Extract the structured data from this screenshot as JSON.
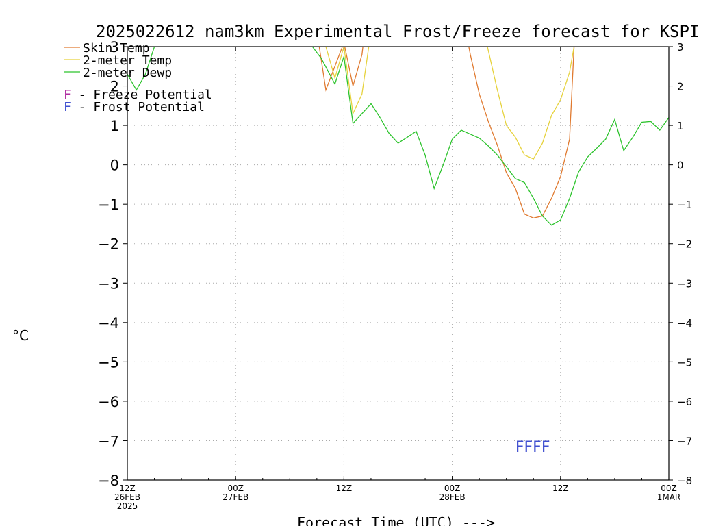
{
  "chart_data": {
    "type": "line",
    "title": "2025022612 nam3km Experimental Frost/Freeze forecast for KSPI",
    "xlabel": "Forecast Time (UTC) --->",
    "ylabel": "°C",
    "ylim": [
      -8,
      3
    ],
    "yticks": [
      -8,
      -7,
      -6,
      -5,
      -4,
      -3,
      -2,
      -1,
      0,
      1,
      2,
      3
    ],
    "yticklabels": [
      "−8",
      "−7",
      "−6",
      "−5",
      "−4",
      "−3",
      "−2",
      "−1",
      "0",
      "1",
      "2",
      "3"
    ],
    "xlim": [
      0,
      60
    ],
    "xticks": [
      {
        "hour": 0,
        "lines": [
          "12Z",
          "26FEB",
          "2025"
        ]
      },
      {
        "hour": 12,
        "lines": [
          "00Z",
          "27FEB"
        ]
      },
      {
        "hour": 24,
        "lines": [
          "12Z"
        ]
      },
      {
        "hour": 36,
        "lines": [
          "00Z",
          "28FEB"
        ]
      },
      {
        "hour": 48,
        "lines": [
          "12Z"
        ]
      },
      {
        "hour": 60,
        "lines": [
          "00Z",
          "1MAR"
        ]
      }
    ],
    "grid": true,
    "legend": [
      {
        "label": "Skin Temp",
        "color": "#e07a30"
      },
      {
        "label": "2-meter Temp",
        "color": "#e6d23c"
      },
      {
        "label": "2-meter Dewp",
        "color": "#2cc32c"
      }
    ],
    "legend_notes": [
      {
        "marker": "F",
        "label": " - Freeze Potential",
        "color": "#b02ca0"
      },
      {
        "marker": "F",
        "label": " - Frost Potential",
        "color": "#4050d0"
      }
    ],
    "series": [
      {
        "name": "Skin Temp",
        "color": "#e07a30",
        "points": [
          [
            21.0,
            3.4
          ],
          [
            22.0,
            1.9
          ],
          [
            23.0,
            2.5
          ],
          [
            24.0,
            3.1
          ],
          [
            25.0,
            2.0
          ],
          [
            26.0,
            2.8
          ],
          [
            26.5,
            3.8
          ],
          [
            37.5,
            3.4
          ],
          [
            38.0,
            2.8
          ],
          [
            39.0,
            1.8
          ],
          [
            40.0,
            1.1
          ],
          [
            41.0,
            0.5
          ],
          [
            42.0,
            -0.2
          ],
          [
            43.0,
            -0.6
          ],
          [
            44.0,
            -1.25
          ],
          [
            45.0,
            -1.35
          ],
          [
            46.0,
            -1.3
          ],
          [
            47.0,
            -0.85
          ],
          [
            48.0,
            -0.3
          ],
          [
            49.0,
            0.65
          ],
          [
            49.5,
            3.0
          ]
        ]
      },
      {
        "name": "2-meter Temp",
        "color": "#e6d23c",
        "points": [
          [
            21.5,
            3.4
          ],
          [
            23.0,
            2.2
          ],
          [
            24.0,
            3.0
          ],
          [
            25.0,
            1.3
          ],
          [
            26.0,
            1.8
          ],
          [
            27.0,
            3.4
          ],
          [
            39.5,
            3.4
          ],
          [
            41.0,
            1.9
          ],
          [
            42.0,
            1.0
          ],
          [
            43.0,
            0.7
          ],
          [
            44.0,
            0.25
          ],
          [
            45.0,
            0.15
          ],
          [
            46.0,
            0.55
          ],
          [
            47.0,
            1.25
          ],
          [
            48.0,
            1.65
          ],
          [
            49.0,
            2.35
          ],
          [
            49.5,
            3.0
          ]
        ]
      },
      {
        "name": "2-meter Dewp",
        "color": "#2cc32c",
        "points": [
          [
            0.0,
            2.3
          ],
          [
            1.0,
            1.9
          ],
          [
            2.0,
            2.3
          ],
          [
            3.0,
            3.0
          ],
          [
            20.5,
            3.0
          ],
          [
            21.5,
            2.7
          ],
          [
            23.0,
            2.05
          ],
          [
            24.0,
            2.75
          ],
          [
            25.0,
            1.05
          ],
          [
            26.0,
            1.3
          ],
          [
            27.0,
            1.55
          ],
          [
            28.0,
            1.2
          ],
          [
            29.0,
            0.8
          ],
          [
            30.0,
            0.55
          ],
          [
            31.0,
            0.7
          ],
          [
            32.0,
            0.85
          ],
          [
            33.0,
            0.25
          ],
          [
            34.0,
            -0.6
          ],
          [
            35.0,
            0.0
          ],
          [
            36.0,
            0.65
          ],
          [
            37.0,
            0.88
          ],
          [
            38.0,
            0.78
          ],
          [
            39.0,
            0.68
          ],
          [
            40.0,
            0.48
          ],
          [
            41.0,
            0.25
          ],
          [
            42.0,
            -0.05
          ],
          [
            43.0,
            -0.35
          ],
          [
            44.0,
            -0.45
          ],
          [
            45.0,
            -0.85
          ],
          [
            46.0,
            -1.3
          ],
          [
            47.0,
            -1.53
          ],
          [
            48.0,
            -1.4
          ],
          [
            49.0,
            -0.85
          ],
          [
            50.0,
            -0.18
          ],
          [
            51.0,
            0.2
          ],
          [
            52.0,
            0.42
          ],
          [
            53.0,
            0.65
          ],
          [
            54.0,
            1.15
          ],
          [
            55.0,
            0.36
          ],
          [
            56.0,
            0.7
          ],
          [
            57.0,
            1.08
          ],
          [
            58.0,
            1.1
          ],
          [
            59.0,
            0.88
          ],
          [
            60.0,
            1.2
          ]
        ]
      }
    ],
    "annotations": [
      {
        "text": "FFFF",
        "hour": 43.0,
        "value": -7.15,
        "color": "#4050d0"
      }
    ]
  }
}
